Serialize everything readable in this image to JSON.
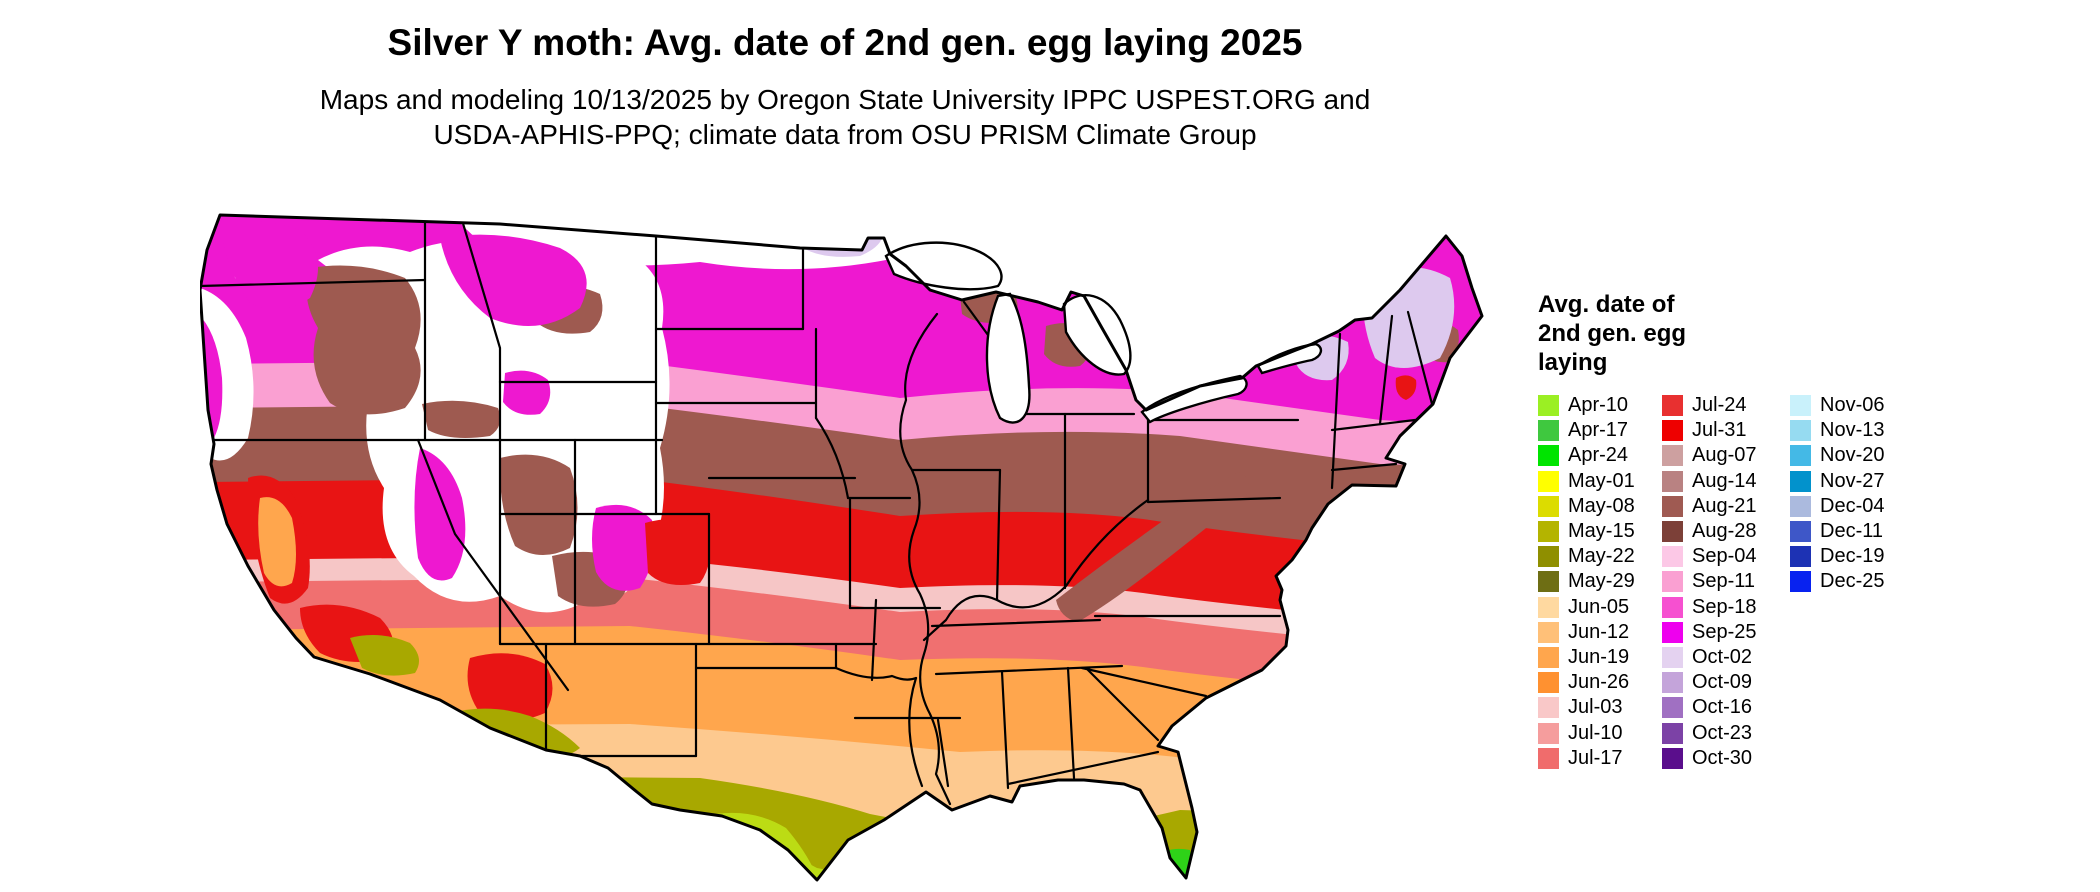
{
  "title": "Silver Y moth: Avg. date of 2nd gen. egg laying 2025",
  "subtitle": {
    "line1": "Maps and modeling 10/13/2025 by Oregon State University IPPC USPEST.ORG and",
    "line2": "USDA-APHIS-PPQ; climate data from OSU PRISM Climate Group"
  },
  "legend": {
    "title_lines": [
      "Avg. date of",
      "2nd gen. egg",
      "laying"
    ],
    "columns": [
      [
        {
          "label": "Apr-10",
          "color": "#9bef23"
        },
        {
          "label": "Apr-17",
          "color": "#3fc83f"
        },
        {
          "label": "Apr-24",
          "color": "#00e400"
        },
        {
          "label": "May-01",
          "color": "#ffff00"
        },
        {
          "label": "May-08",
          "color": "#dcdc00"
        },
        {
          "label": "May-15",
          "color": "#b4b400"
        },
        {
          "label": "May-22",
          "color": "#8f8f00"
        },
        {
          "label": "May-29",
          "color": "#6e6e14"
        },
        {
          "label": "Jun-05",
          "color": "#ffd9a0"
        },
        {
          "label": "Jun-12",
          "color": "#ffc078"
        },
        {
          "label": "Jun-19",
          "color": "#ffa64d"
        },
        {
          "label": "Jun-26",
          "color": "#ff9130"
        },
        {
          "label": "Jul-03",
          "color": "#f9c8c8"
        },
        {
          "label": "Jul-10",
          "color": "#f59d9d"
        },
        {
          "label": "Jul-17",
          "color": "#f06c6c"
        }
      ],
      [
        {
          "label": "Jul-24",
          "color": "#e83030"
        },
        {
          "label": "Jul-31",
          "color": "#ee0000"
        },
        {
          "label": "Aug-07",
          "color": "#cda0a0"
        },
        {
          "label": "Aug-14",
          "color": "#b98282"
        },
        {
          "label": "Aug-21",
          "color": "#9f5a52"
        },
        {
          "label": "Aug-28",
          "color": "#7c4038"
        },
        {
          "label": "Sep-04",
          "color": "#fcc8e6"
        },
        {
          "label": "Sep-11",
          "color": "#faa0d2"
        },
        {
          "label": "Sep-18",
          "color": "#f650d0"
        },
        {
          "label": "Sep-25",
          "color": "#ee00ee"
        },
        {
          "label": "Oct-02",
          "color": "#e4d2f0"
        },
        {
          "label": "Oct-09",
          "color": "#c4a4da"
        },
        {
          "label": "Oct-16",
          "color": "#a070c2"
        },
        {
          "label": "Oct-23",
          "color": "#7c42a6"
        },
        {
          "label": "Oct-30",
          "color": "#5a0e8c"
        }
      ],
      [
        {
          "label": "Nov-06",
          "color": "#c9f1fb"
        },
        {
          "label": "Nov-13",
          "color": "#96dbf1"
        },
        {
          "label": "Nov-20",
          "color": "#44b9e6"
        },
        {
          "label": "Nov-27",
          "color": "#0292cc"
        },
        {
          "label": "Dec-04",
          "color": "#abbade"
        },
        {
          "label": "Dec-11",
          "color": "#3e57c8"
        },
        {
          "label": "Dec-19",
          "color": "#1d32b4"
        },
        {
          "label": "Dec-25",
          "color": "#0822f0"
        }
      ]
    ]
  },
  "map_colors": {
    "white": "#ffffff",
    "magenta": "#ee18d0",
    "pink": "#faa0d2",
    "lavender": "#ddc9ee",
    "brown": "#9e5a50",
    "red": "#e81414",
    "palepink": "#f6c6c6",
    "salmon": "#f07070",
    "orange": "#ffa64d",
    "lightorange": "#fdc98f",
    "olive": "#a8a800",
    "yellowgreen": "#bcdc14",
    "green": "#2ed218"
  }
}
